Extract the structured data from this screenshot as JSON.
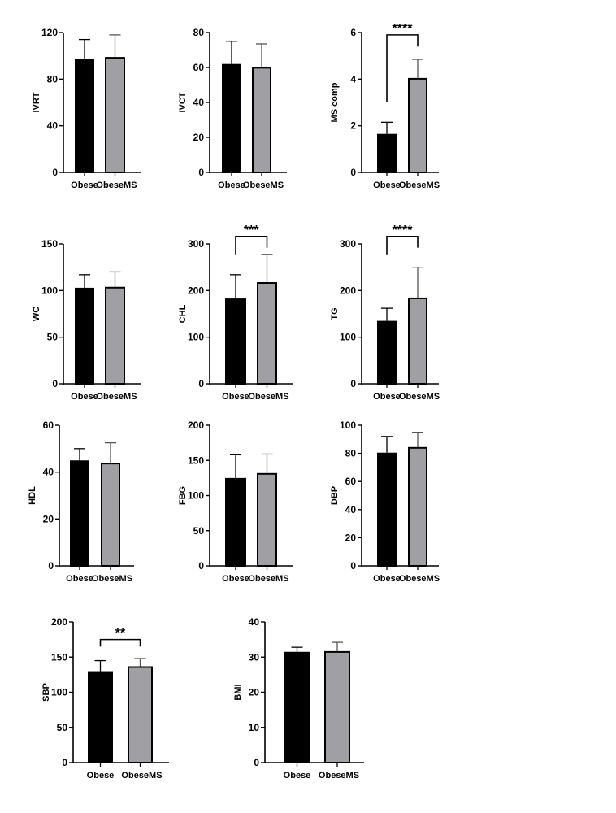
{
  "chart_data": [
    {
      "type": "bar",
      "ylabel": "IVRT",
      "categories": [
        "Obese",
        "ObeseMS"
      ],
      "ylim": [
        0,
        120
      ],
      "yticks": [
        0,
        40,
        80,
        120
      ],
      "values": [
        97,
        99
      ],
      "error_upper": [
        114,
        118
      ],
      "significance": null,
      "colors": [
        "#000000",
        "#a0a0a4"
      ]
    },
    {
      "type": "bar",
      "ylabel": "IVCT",
      "categories": [
        "Obese",
        "ObeseMS"
      ],
      "ylim": [
        0,
        80
      ],
      "yticks": [
        0,
        20,
        40,
        60,
        80
      ],
      "values": [
        62,
        60.3
      ],
      "error_upper": [
        75,
        73.5
      ],
      "significance": null,
      "colors": [
        "#000000",
        "#a0a0a4"
      ]
    },
    {
      "type": "bar",
      "ylabel": "MS comp",
      "categories": [
        "Obese",
        "ObeseMS"
      ],
      "ylim": [
        0,
        6
      ],
      "yticks": [
        0,
        2,
        4,
        6
      ],
      "values": [
        1.65,
        4.05
      ],
      "error_upper": [
        2.15,
        4.85
      ],
      "significance": {
        "label": "****",
        "level": 5.9,
        "left_end": 3.0,
        "right_end": 5.4
      },
      "colors": [
        "#000000",
        "#a0a0a4"
      ]
    },
    {
      "type": "bar",
      "ylabel": "WC",
      "categories": [
        "Obese",
        "ObeseMS"
      ],
      "ylim": [
        0,
        150
      ],
      "yticks": [
        0,
        50,
        100,
        150
      ],
      "values": [
        103,
        104
      ],
      "error_upper": [
        117,
        120
      ],
      "significance": null,
      "colors": [
        "#000000",
        "#a0a0a4"
      ]
    },
    {
      "type": "bar",
      "ylabel": "CHL",
      "categories": [
        "Obese",
        "ObeseMS"
      ],
      "ylim": [
        0,
        300
      ],
      "yticks": [
        0,
        100,
        200,
        300
      ],
      "values": [
        183,
        218
      ],
      "error_upper": [
        234,
        277
      ],
      "significance": {
        "label": "***",
        "level": 316,
        "left_end": 276,
        "right_end": 292
      },
      "colors": [
        "#000000",
        "#a0a0a4"
      ]
    },
    {
      "type": "bar",
      "ylabel": "TG",
      "categories": [
        "Obese",
        "ObeseMS"
      ],
      "ylim": [
        0,
        300
      ],
      "yticks": [
        0,
        100,
        200,
        300
      ],
      "values": [
        135,
        185
      ],
      "error_upper": [
        162,
        250
      ],
      "significance": {
        "label": "****",
        "level": 316,
        "left_end": 276,
        "right_end": 292
      },
      "colors": [
        "#000000",
        "#a0a0a4"
      ]
    },
    {
      "type": "bar",
      "ylabel": "HDL",
      "categories": [
        "Obese",
        "ObeseMS"
      ],
      "ylim": [
        0,
        60
      ],
      "yticks": [
        0,
        20,
        40,
        60
      ],
      "values": [
        45,
        44
      ],
      "error_upper": [
        50,
        52.5
      ],
      "significance": null,
      "colors": [
        "#000000",
        "#a0a0a4"
      ]
    },
    {
      "type": "bar",
      "ylabel": "FBG",
      "categories": [
        "Obese",
        "ObeseMS"
      ],
      "ylim": [
        0,
        200
      ],
      "yticks": [
        0,
        50,
        100,
        150,
        200
      ],
      "values": [
        125,
        132
      ],
      "error_upper": [
        158,
        159
      ],
      "significance": null,
      "colors": [
        "#000000",
        "#a0a0a4"
      ]
    },
    {
      "type": "bar",
      "ylabel": "DBP",
      "categories": [
        "Obese",
        "ObeseMS"
      ],
      "ylim": [
        0,
        100
      ],
      "yticks": [
        0,
        20,
        40,
        60,
        80,
        100
      ],
      "values": [
        80.5,
        84.5
      ],
      "error_upper": [
        92,
        95
      ],
      "significance": null,
      "colors": [
        "#000000",
        "#a0a0a4"
      ]
    },
    {
      "type": "bar",
      "ylabel": "SBP",
      "categories": [
        "Obese",
        "ObeseMS"
      ],
      "ylim": [
        0,
        200
      ],
      "yticks": [
        0,
        50,
        100,
        150,
        200
      ],
      "values": [
        130,
        137
      ],
      "error_upper": [
        145,
        148
      ],
      "significance": {
        "label": "**",
        "level": 175,
        "left_end": 165,
        "right_end": 165
      },
      "colors": [
        "#000000",
        "#a0a0a4"
      ]
    },
    {
      "type": "bar",
      "ylabel": "BMI",
      "categories": [
        "Obese",
        "ObeseMS"
      ],
      "ylim": [
        0,
        40
      ],
      "yticks": [
        0,
        10,
        20,
        30,
        40
      ],
      "values": [
        31.5,
        31.7
      ],
      "error_upper": [
        32.8,
        34.2
      ],
      "significance": null,
      "colors": [
        "#000000",
        "#a0a0a4"
      ]
    }
  ]
}
